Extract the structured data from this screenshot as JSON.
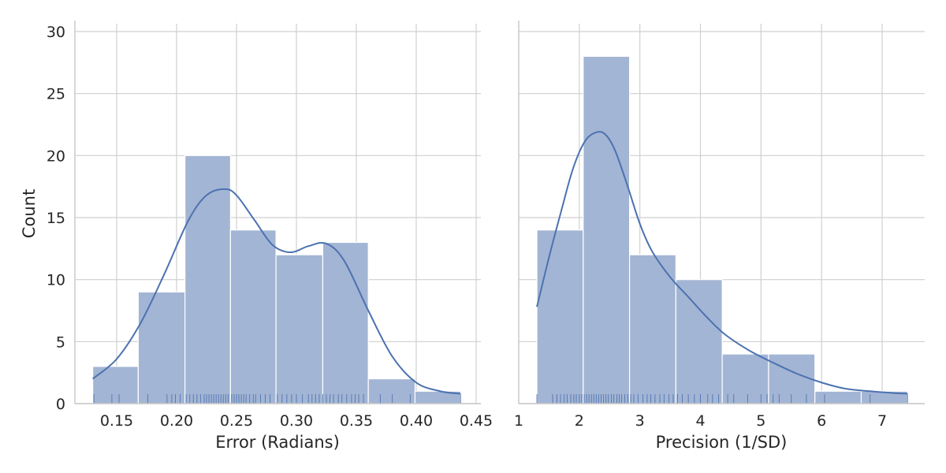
{
  "chart_data": [
    {
      "type": "bar",
      "xlabel": "Error (Radians)",
      "ylabel": "Count",
      "ylim": [
        0,
        30
      ],
      "xlim": [
        0.13,
        0.44
      ],
      "xticks": [
        0.15,
        0.2,
        0.25,
        0.3,
        0.35,
        0.4,
        0.45
      ],
      "xtick_labels": [
        "0.15",
        "0.20",
        "0.25",
        "0.30",
        "0.35",
        "0.40",
        "0.45"
      ],
      "yticks": [
        0,
        5,
        10,
        15,
        20,
        25,
        30
      ],
      "ytick_labels": [
        "0",
        "5",
        "10",
        "15",
        "20",
        "25",
        "30"
      ],
      "bin_edges": [
        0.13,
        0.168,
        0.207,
        0.245,
        0.283,
        0.322,
        0.36,
        0.399,
        0.437
      ],
      "values": [
        3,
        9,
        20,
        14,
        12,
        13,
        2,
        1
      ],
      "kde": {
        "x": [
          0.13,
          0.15,
          0.17,
          0.19,
          0.21,
          0.225,
          0.24,
          0.25,
          0.265,
          0.28,
          0.295,
          0.31,
          0.325,
          0.34,
          0.36,
          0.38,
          0.4,
          0.42,
          0.437
        ],
        "y": [
          2.0,
          3.6,
          6.5,
          10.5,
          14.8,
          16.8,
          17.3,
          16.8,
          14.8,
          12.8,
          12.2,
          12.7,
          12.9,
          11.5,
          7.5,
          3.8,
          1.7,
          1.0,
          0.8
        ]
      },
      "rug": [
        0.131,
        0.146,
        0.152,
        0.176,
        0.192,
        0.196,
        0.199,
        0.203,
        0.208,
        0.211,
        0.214,
        0.217,
        0.22,
        0.223,
        0.225,
        0.227,
        0.229,
        0.231,
        0.233,
        0.235,
        0.237,
        0.239,
        0.241,
        0.243,
        0.246,
        0.248,
        0.25,
        0.252,
        0.254,
        0.256,
        0.258,
        0.261,
        0.264,
        0.266,
        0.27,
        0.274,
        0.278,
        0.284,
        0.288,
        0.292,
        0.296,
        0.3,
        0.305,
        0.31,
        0.313,
        0.316,
        0.319,
        0.322,
        0.325,
        0.328,
        0.331,
        0.335,
        0.338,
        0.342,
        0.346,
        0.349,
        0.352,
        0.356,
        0.37,
        0.38,
        0.395,
        0.437
      ],
      "color": "#4c72b0"
    },
    {
      "type": "bar",
      "xlabel": "Precision (1/SD)",
      "ylabel": "",
      "ylim": [
        0,
        30
      ],
      "xlim": [
        1.3,
        7.4
      ],
      "xticks": [
        1,
        2,
        3,
        4,
        5,
        6,
        7
      ],
      "xtick_labels": [
        "1",
        "2",
        "3",
        "4",
        "5",
        "6",
        "7"
      ],
      "yticks": [
        0,
        5,
        10,
        15,
        20,
        25,
        30
      ],
      "ytick_labels": [
        "0",
        "5",
        "10",
        "15",
        "20",
        "25",
        "30"
      ],
      "bin_edges": [
        1.3,
        2.065,
        2.83,
        3.595,
        4.36,
        5.125,
        5.89,
        6.655,
        7.42
      ],
      "values": [
        14,
        28,
        12,
        10,
        4,
        4,
        1,
        1
      ],
      "kde": {
        "x": [
          1.3,
          1.5,
          1.7,
          1.9,
          2.1,
          2.3,
          2.45,
          2.6,
          2.8,
          3.0,
          3.2,
          3.5,
          3.8,
          4.1,
          4.4,
          4.8,
          5.2,
          5.6,
          6.0,
          6.4,
          6.8,
          7.2,
          7.42
        ],
        "y": [
          7.8,
          11.8,
          15.5,
          19.0,
          21.2,
          21.9,
          21.6,
          20.3,
          17.5,
          14.5,
          12.3,
          10.2,
          8.6,
          7.0,
          5.6,
          4.3,
          3.3,
          2.4,
          1.7,
          1.2,
          1.0,
          0.85,
          0.8
        ]
      },
      "rug": [
        1.3,
        1.56,
        1.63,
        1.69,
        1.75,
        1.8,
        1.86,
        1.91,
        1.95,
        2.0,
        2.04,
        2.08,
        2.12,
        2.16,
        2.2,
        2.24,
        2.28,
        2.32,
        2.36,
        2.4,
        2.44,
        2.48,
        2.53,
        2.57,
        2.62,
        2.66,
        2.7,
        2.75,
        2.8,
        2.85,
        2.9,
        2.97,
        3.05,
        3.12,
        3.18,
        3.25,
        3.33,
        3.4,
        3.48,
        3.55,
        3.62,
        3.7,
        3.8,
        3.9,
        4.0,
        4.12,
        4.2,
        4.3,
        4.45,
        4.55,
        4.78,
        5.0,
        5.1,
        5.2,
        5.3,
        5.5,
        5.75,
        6.05,
        6.8,
        7.42
      ],
      "color": "#4c72b0"
    }
  ]
}
